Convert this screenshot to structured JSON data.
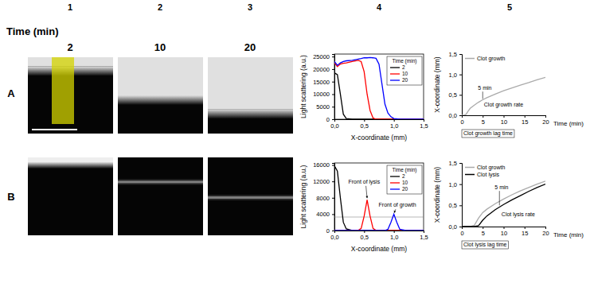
{
  "figure": {
    "column_labels": [
      "1",
      "2",
      "3",
      "4",
      "5"
    ],
    "time_header": "Time (min)",
    "time_labels": [
      "2",
      "10",
      "20"
    ],
    "row_labels": [
      "A",
      "B"
    ]
  },
  "chart_data": [
    {
      "type": "line",
      "x_label": "X-coordinate (mm)",
      "y_label": "Light scattering (a.u.)",
      "legend_title": "Time (min)",
      "legend": "upper right",
      "x": [
        0,
        0.05,
        0.1,
        0.15,
        0.2,
        0.3,
        0.4,
        0.45,
        0.5,
        0.55,
        0.6,
        0.65,
        0.7,
        0.75,
        0.8,
        0.85,
        0.9,
        0.95,
        1.0,
        1.1,
        1.5
      ],
      "xlim": [
        0,
        1.5
      ],
      "xticks": [
        {
          "value": 0,
          "label": "0,0"
        },
        {
          "value": 0.5,
          "label": "0,5"
        },
        {
          "value": 1,
          "label": "1,0"
        },
        {
          "value": 1.5,
          "label": "1,5"
        }
      ],
      "ylim": [
        0,
        26000
      ],
      "yticks": [
        0,
        5000,
        10000,
        15000,
        20000,
        25000
      ],
      "series": [
        {
          "name": "2",
          "color": "#000000",
          "values": [
            18500,
            17800,
            10000,
            2000,
            300,
            0,
            0,
            0,
            0,
            0,
            0,
            0,
            0,
            0,
            0,
            0,
            0,
            0,
            0,
            0,
            0
          ]
        },
        {
          "name": "10",
          "color": "#ff0000",
          "values": [
            22500,
            21000,
            22000,
            22300,
            22500,
            23000,
            23500,
            23000,
            19000,
            10000,
            3500,
            500,
            0,
            0,
            0,
            0,
            0,
            0,
            0,
            0,
            0
          ]
        },
        {
          "name": "20",
          "color": "#0000ff",
          "values": [
            23000,
            21500,
            22500,
            23000,
            23300,
            23500,
            24000,
            24200,
            24500,
            24500,
            24600,
            24500,
            24300,
            22000,
            14000,
            6000,
            2500,
            1000,
            300,
            0,
            0
          ]
        }
      ]
    },
    {
      "type": "line",
      "x_label": "X-coordinate (mm)",
      "y_label": "Light scattering (a.u.)",
      "legend_title": "Time (min)",
      "legend": "upper right",
      "x": [
        0,
        0.05,
        0.1,
        0.15,
        0.2,
        0.3,
        0.4,
        0.45,
        0.5,
        0.55,
        0.6,
        0.65,
        0.7,
        0.85,
        0.9,
        0.95,
        1.0,
        1.05,
        1.1,
        1.2,
        1.5
      ],
      "xlim": [
        0,
        1.5
      ],
      "xticks": [
        {
          "value": 0,
          "label": "0,0"
        },
        {
          "value": 0.5,
          "label": "0,5"
        },
        {
          "value": 1,
          "label": "1,0"
        },
        {
          "value": 1.5,
          "label": "1,5"
        }
      ],
      "ylim": [
        0,
        16500
      ],
      "yticks": [
        0,
        4000,
        8000,
        12000,
        16000
      ],
      "reference_line": 3300,
      "annotations": [
        "Front of lysis",
        "Front of growth"
      ],
      "series": [
        {
          "name": "2",
          "color": "#000000",
          "values": [
            15800,
            14500,
            8000,
            2000,
            400,
            0,
            0,
            0,
            0,
            0,
            0,
            0,
            0,
            0,
            0,
            0,
            0,
            0,
            0,
            0,
            0
          ]
        },
        {
          "name": "10",
          "color": "#ff0000",
          "values": [
            0,
            0,
            0,
            0,
            0,
            0,
            50,
            500,
            3500,
            7500,
            3500,
            500,
            50,
            0,
            0,
            0,
            0,
            0,
            0,
            0,
            0
          ]
        },
        {
          "name": "20",
          "color": "#0000ff",
          "values": [
            0,
            0,
            0,
            0,
            0,
            0,
            0,
            0,
            0,
            0,
            0,
            0,
            0,
            0,
            300,
            2000,
            4000,
            2000,
            300,
            0,
            0
          ]
        }
      ]
    },
    {
      "type": "line",
      "x_label": "Time (min)",
      "y_label": "X-coordinate (mm)",
      "legend": "upper left",
      "x": [
        0,
        0.5,
        1,
        1.5,
        2,
        3,
        4,
        5,
        6,
        8,
        10,
        12,
        14,
        16,
        18,
        20
      ],
      "xlim": [
        0,
        20
      ],
      "xticks": [
        0,
        5,
        10,
        15,
        20
      ],
      "ylim": [
        0,
        1.5
      ],
      "yticks": [
        {
          "value": 0,
          "label": "0,0"
        },
        {
          "value": 0.5,
          "label": "0,5"
        },
        {
          "value": 1,
          "label": "1,0"
        },
        {
          "value": 1.5,
          "label": "1,5"
        }
      ],
      "annotations": [
        "5 min",
        "Clot growth rate",
        "Clot growth lag time"
      ],
      "series": [
        {
          "name": "Clot growth",
          "color": "#aaaaaa",
          "values": [
            0,
            0,
            0.02,
            0.1,
            0.17,
            0.25,
            0.32,
            0.38,
            0.43,
            0.52,
            0.6,
            0.67,
            0.74,
            0.8,
            0.87,
            0.93
          ]
        }
      ]
    },
    {
      "type": "line",
      "x_label": "Time (min)",
      "y_label": "X-coordinate (mm)",
      "legend": "upper left",
      "x": [
        0,
        0.5,
        1,
        1.5,
        2,
        3,
        4,
        5,
        6,
        8,
        10,
        12,
        14,
        16,
        18,
        20
      ],
      "xlim": [
        0,
        20
      ],
      "xticks": [
        0,
        5,
        10,
        15,
        20
      ],
      "ylim": [
        0,
        1.5
      ],
      "yticks": [
        {
          "value": 0,
          "label": "0,0"
        },
        {
          "value": 0.5,
          "label": "0,5"
        },
        {
          "value": 1,
          "label": "1,0"
        },
        {
          "value": 1.5,
          "label": "1,5"
        }
      ],
      "annotations": [
        "5 min",
        "Clot lysis rate",
        "Clot lysis lag time"
      ],
      "series": [
        {
          "name": "Clot growth",
          "color": "#aaaaaa",
          "values": [
            0,
            0,
            0,
            0,
            0,
            0.03,
            0.2,
            0.33,
            0.41,
            0.54,
            0.65,
            0.75,
            0.84,
            0.92,
            1.0,
            1.07
          ]
        },
        {
          "name": "Clot lysis",
          "color": "#000000",
          "values": [
            0,
            0,
            0,
            0,
            0,
            0,
            0.02,
            0.15,
            0.25,
            0.4,
            0.52,
            0.63,
            0.73,
            0.83,
            0.92,
            1.0
          ]
        }
      ]
    }
  ]
}
